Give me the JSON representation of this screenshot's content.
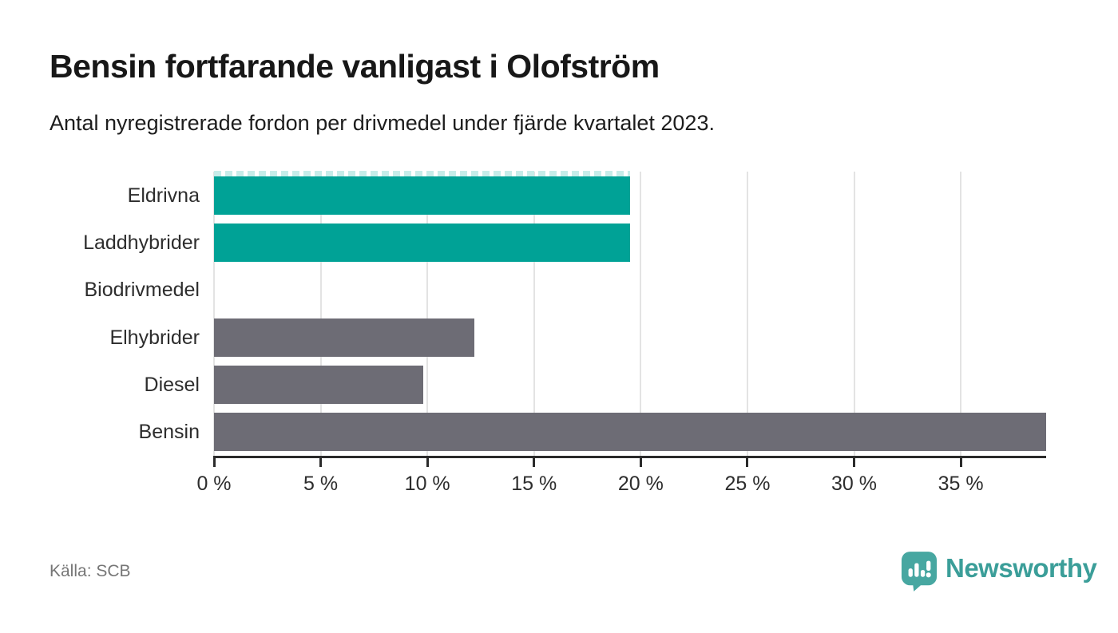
{
  "brand": {
    "name": "Newsworthy",
    "icon": "newsworthy-speech-bubble-chart-icon",
    "color": "#3b9e99"
  },
  "source_label": "Källa: SCB",
  "colors": {
    "highlight_bar": "#00a296",
    "default_bar": "#6d6c75",
    "grid": "#e3e3e3",
    "axis": "#2b2b2b",
    "title_text": "#181818",
    "muted_text": "#767676",
    "dash_cap": "#c6ece9"
  },
  "chart_data": {
    "type": "bar",
    "orientation": "horizontal",
    "title": "Bensin fortfarande vanligast i Olofström",
    "subtitle": "Antal nyregistrerade fordon per drivmedel under fjärde kvartalet 2023.",
    "categories": [
      "Eldrivna",
      "Laddhybrider",
      "Biodrivmedel",
      "Elhybrider",
      "Diesel",
      "Bensin"
    ],
    "values": [
      19.5,
      19.5,
      0,
      12.2,
      9.8,
      39
    ],
    "unit": "%",
    "bar_colors": [
      "#00a296",
      "#00a296",
      "#6d6c75",
      "#6d6c75",
      "#6d6c75",
      "#6d6c75"
    ],
    "x_tick_labels": [
      "0 %",
      "5 %",
      "10 %",
      "15 %",
      "20 %",
      "25 %",
      "30 %",
      "35 %"
    ],
    "x_tick_values": [
      0,
      5,
      10,
      15,
      20,
      25,
      30,
      35
    ],
    "xlim": [
      0,
      39
    ],
    "grid": true,
    "legend": "none",
    "first_bar_dashed_cap": true,
    "source": "Källa: SCB"
  }
}
